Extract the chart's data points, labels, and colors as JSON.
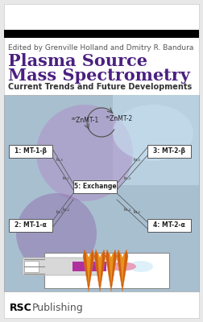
{
  "editor_text": "Edited by Grenville Holland and Dmitry R. Bandura",
  "editor_fontsize": 6.5,
  "title_line1": "Plasma Source",
  "title_line2": "Mass Spectrometry",
  "title_color": "#4a2080",
  "title_fontsize": 15,
  "subtitle": "Current Trends and Future Developments",
  "subtitle_fontsize": 7,
  "subtitle_color": "#333333",
  "subtitle_bold": true,
  "box_labels": [
    "1: MT-1-β",
    "2: MT-1-α",
    "3: MT-2-β",
    "4: MT-2-α",
    "5: Exchange"
  ],
  "zn_label1": "⁶⁷ZnMT-1",
  "zn_label2": "⁷⁰ZnMT-2",
  "rsc_text": "RSC",
  "publishing_text": "Publishing",
  "page_bg": "#ffffff",
  "outer_bg": "#e8e8e8",
  "diag_bg_top": "#9bbdd4",
  "diag_bg_bot": "#b8c8d8",
  "purple_blob1_color": "#a080c0",
  "purple_blob2_color": "#8060a8"
}
